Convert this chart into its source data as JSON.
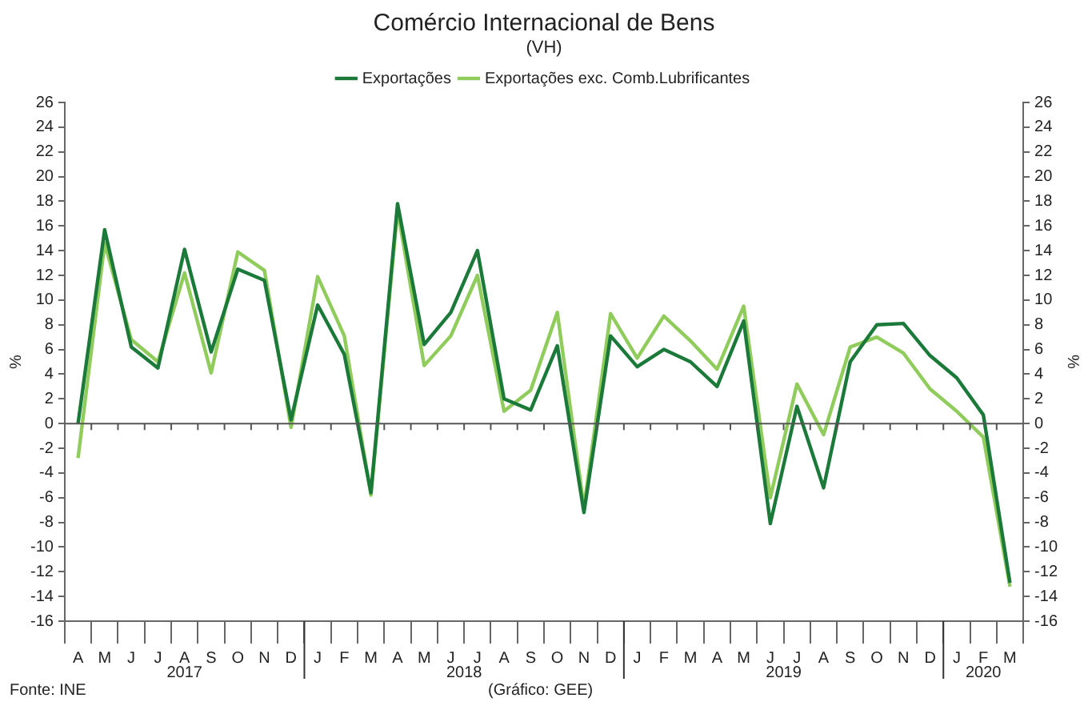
{
  "chart_data": {
    "type": "line",
    "title": "Comércio Internacional de Bens",
    "subtitle": "(VH)",
    "ylabel": "%",
    "y2label": "%",
    "categories": [
      "A",
      "M",
      "J",
      "J",
      "A",
      "S",
      "O",
      "N",
      "D",
      "J",
      "F",
      "M",
      "A",
      "M",
      "J",
      "J",
      "A",
      "S",
      "O",
      "N",
      "D",
      "J",
      "F",
      "M",
      "A",
      "M",
      "J",
      "J",
      "A",
      "S",
      "O",
      "N",
      "D",
      "J",
      "F",
      "M"
    ],
    "series": [
      {
        "name": "Exportações",
        "color": "#1b7a3a",
        "values": [
          0,
          15.7,
          6.2,
          4.5,
          14.1,
          5.8,
          12.5,
          11.6,
          0.3,
          9.6,
          5.6,
          -5.6,
          17.8,
          6.4,
          9.0,
          14.0,
          2.0,
          1.1,
          6.3,
          -7.2,
          7.1,
          4.6,
          6.0,
          5.0,
          3.0,
          8.3,
          -8.1,
          1.4,
          -5.2,
          5.0,
          8.0,
          8.1,
          5.5,
          3.7,
          0.7,
          -12.9
        ]
      },
      {
        "name": "Exportações exc. Comb.Lubrificantes",
        "color": "#8fcc5c",
        "values": [
          -2.8,
          14.6,
          6.8,
          5.0,
          12.2,
          4.1,
          13.9,
          12.4,
          -0.3,
          11.9,
          7.1,
          -5.8,
          17.3,
          4.7,
          7.1,
          12.0,
          1.0,
          2.7,
          9.0,
          -6.8,
          8.9,
          5.3,
          8.7,
          6.7,
          4.4,
          9.5,
          -6.0,
          3.2,
          -0.9,
          6.2,
          7.0,
          5.7,
          2.8,
          1.0,
          -1.1,
          -13.2
        ]
      }
    ],
    "ylim": [
      -16,
      26
    ],
    "yticks": [
      -16,
      -14,
      -12,
      -10,
      -8,
      -6,
      -4,
      -2,
      0,
      2,
      4,
      6,
      8,
      10,
      12,
      14,
      16,
      18,
      20,
      22,
      24,
      26
    ],
    "y2lim": [
      -16,
      26
    ],
    "y2ticks": [
      -16,
      -14,
      -12,
      -10,
      -8,
      -6,
      -4,
      -2,
      0,
      2,
      4,
      6,
      8,
      10,
      12,
      14,
      16,
      18,
      20,
      22,
      24,
      26
    ],
    "ref_lines": [
      {
        "axis": "y",
        "value": 0,
        "color": "#555555"
      }
    ],
    "annotations": [
      "2017",
      "2018",
      "2019",
      "2020",
      "Fonte: INE",
      "(Gráfico: GEE)"
    ],
    "legend": "top",
    "grid": false,
    "marker": "none",
    "line_style": "solid"
  }
}
